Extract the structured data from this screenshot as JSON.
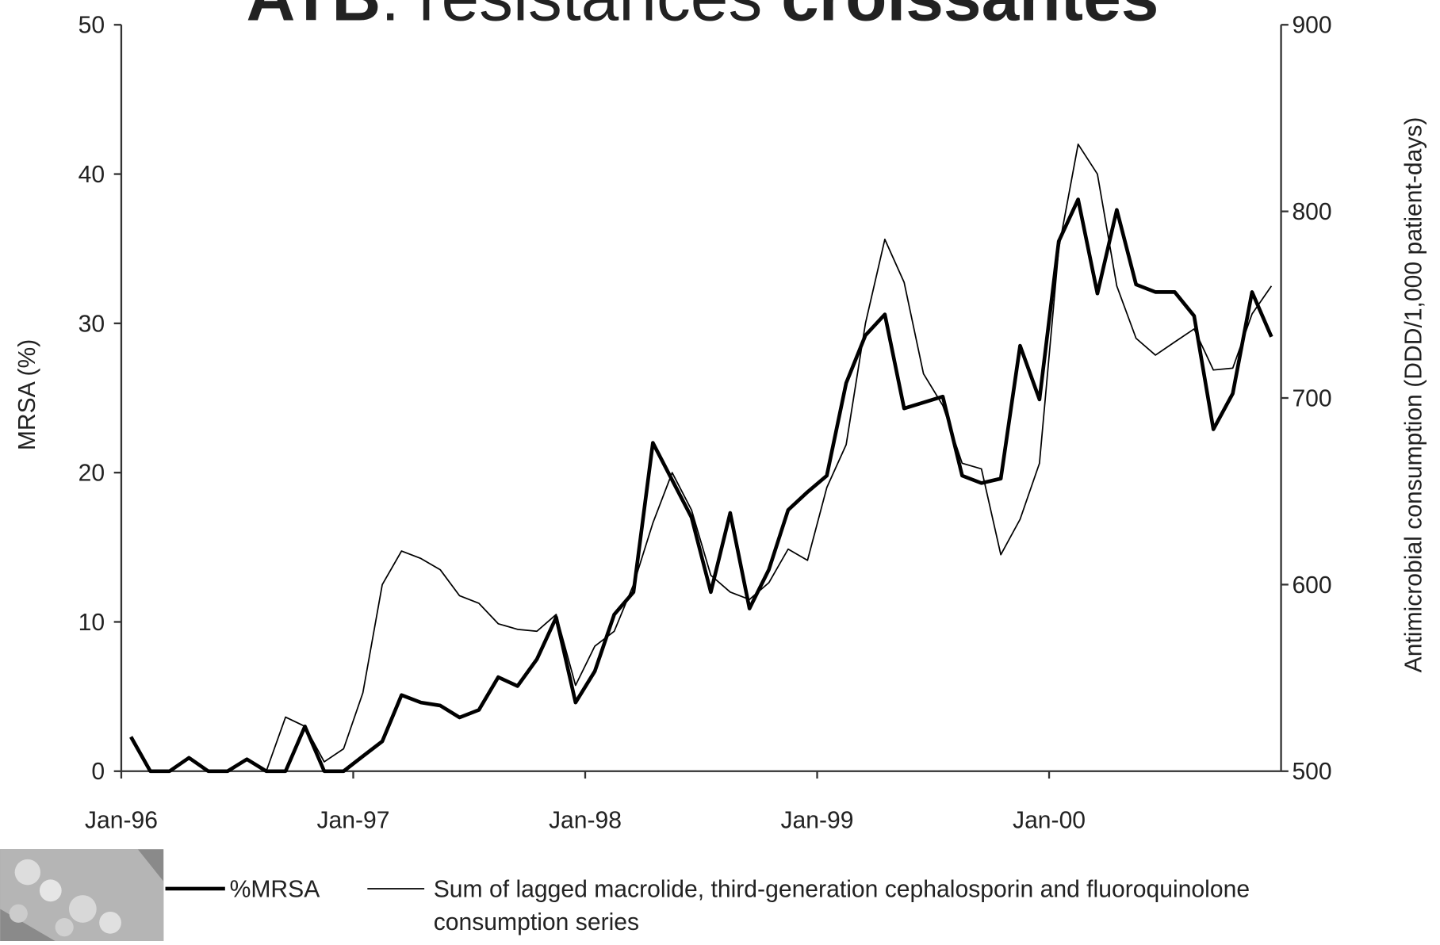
{
  "chart_data": {
    "type": "line",
    "title": [
      "ATB",
      ": resistances ",
      "croissantes"
    ],
    "y_label": "MRSA (%)",
    "y2_label": "Antimicrobial consumption (DDD/1,000 patient-days)",
    "x": [
      "Jan-96",
      "Feb-96",
      "Mar-96",
      "Apr-96",
      "May-96",
      "Jun-96",
      "Jul-96",
      "Aug-96",
      "Sep-96",
      "Oct-96",
      "Nov-96",
      "Dec-96",
      "Jan-97",
      "Feb-97",
      "Mar-97",
      "Apr-97",
      "May-97",
      "Jun-97",
      "Jul-97",
      "Aug-97",
      "Sep-97",
      "Oct-97",
      "Nov-97",
      "Dec-97",
      "Jan-98",
      "Feb-98",
      "Mar-98",
      "Apr-98",
      "May-98",
      "Jun-98",
      "Jul-98",
      "Aug-98",
      "Sep-98",
      "Oct-98",
      "Nov-98",
      "Dec-98",
      "Jan-99",
      "Feb-99",
      "Mar-99",
      "Apr-99",
      "May-99",
      "Jun-99",
      "Jul-99",
      "Aug-99",
      "Sep-99",
      "Oct-99",
      "Nov-99",
      "Dec-99",
      "Jan-00",
      "Feb-00",
      "Mar-00",
      "Apr-00",
      "May-00",
      "Jun-00",
      "Jul-00",
      "Aug-00",
      "Sep-00",
      "Oct-00",
      "Nov-00",
      "Dec-00"
    ],
    "xticks": [
      "Jan-96",
      "Jan-97",
      "Jan-98",
      "Jan-99",
      "Jan-00"
    ],
    "ylim": [
      0,
      50
    ],
    "yticks": [
      0,
      10,
      20,
      30,
      40,
      50
    ],
    "y2lim": [
      500,
      900
    ],
    "y2ticks": [
      500,
      600,
      700,
      800,
      900
    ],
    "series": [
      {
        "name": "%MRSA",
        "color": "#000000",
        "values": [
          2.3,
          0,
          0,
          0.9,
          0,
          0,
          0.8,
          0,
          0,
          3,
          0,
          0,
          1,
          2,
          5.1,
          4.6,
          4.4,
          3.6,
          4.1,
          6.3,
          5.7,
          7.5,
          10.3,
          4.6,
          6.7,
          10.5,
          12,
          22,
          19.5,
          17,
          12,
          17.3,
          10.9,
          13.5,
          17.5,
          18.7,
          19.8,
          26,
          29.2,
          30.6,
          24.3,
          24.7,
          25.1,
          19.8,
          19.3,
          19.6,
          28.5,
          24.9,
          35.5,
          38.3,
          32,
          37.6,
          32.6,
          32.1,
          32.1,
          30.5,
          22.9,
          25.3,
          32.1,
          29.1
        ]
      },
      {
        "name": "Sum of lagged macrolide, third-generation cephalosporin and fluoroquinolone consumption series",
        "color": "#000000",
        "axis": "y2",
        "values": [
          null,
          null,
          null,
          null,
          null,
          null,
          null,
          500,
          529,
          524,
          505,
          512,
          542,
          600,
          618,
          614,
          608,
          594,
          590,
          579,
          576,
          575,
          584,
          546,
          567,
          575,
          600,
          633,
          660,
          640,
          605,
          596,
          592,
          601,
          619,
          613,
          652,
          675,
          740,
          785,
          762,
          713,
          696,
          665,
          662,
          616,
          635,
          665,
          780,
          836,
          820,
          760,
          732,
          723,
          730,
          737,
          715,
          716,
          745,
          760
        ]
      }
    ]
  }
}
